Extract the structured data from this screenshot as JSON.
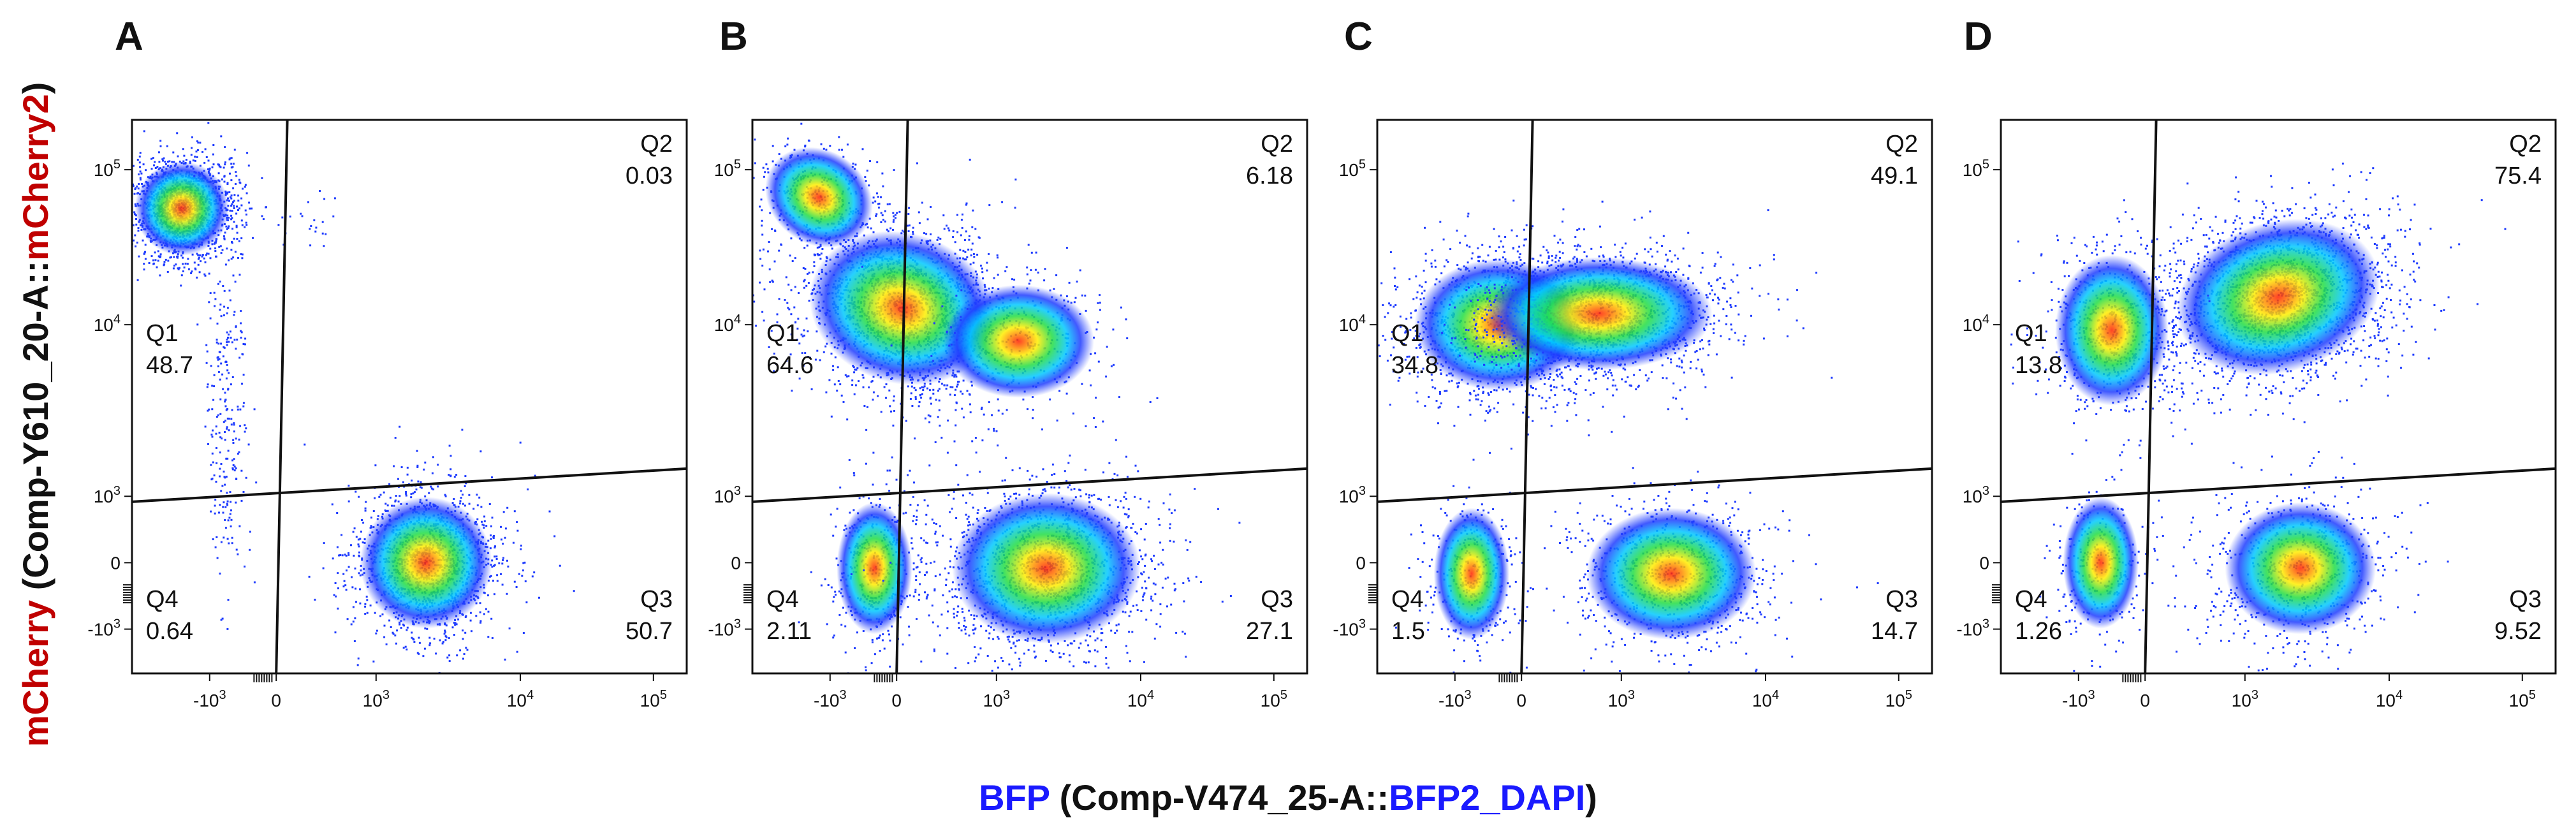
{
  "chart_data": {
    "type": "scatter",
    "subtype": "flow-cytometry-quadrant-density",
    "shared_xlabel": {
      "prefix": "BFP",
      "mid": " (Comp-V474_25-A::",
      "suffix_colored": "BFP2_DAPI",
      "close": ")"
    },
    "shared_ylabel": {
      "prefix": "mCherry",
      "mid": " (Comp-Y610_20-A::",
      "suffix_colored": "mCherry2",
      "close": ")"
    },
    "colors": {
      "bfp_label": "#1a1aff",
      "mcherry_label": "#c00000",
      "frame": "#111111"
    },
    "x_ticks": [
      "-10^3",
      "0",
      "10^3",
      "10^4",
      "10^5"
    ],
    "y_ticks": [
      "10^5",
      "10^4",
      "10^3",
      "0",
      "-10^3"
    ],
    "axis_scale": "biexponential",
    "panels": [
      {
        "label": "A",
        "quadrants": [
          {
            "name": "Q1",
            "percent": "48.7"
          },
          {
            "name": "Q2",
            "percent": "0.03"
          },
          {
            "name": "Q3",
            "percent": "50.7"
          },
          {
            "name": "Q4",
            "percent": "0.64"
          }
        ],
        "populations": [
          {
            "cx": 0.09,
            "cy": 0.16,
            "sx": 0.05,
            "sy": 0.05,
            "n": 1400,
            "rot": 0.7
          },
          {
            "cx": 0.17,
            "cy": 0.5,
            "sx": 0.02,
            "sy": 0.17,
            "n": 260,
            "rot": 0
          },
          {
            "cx": 0.53,
            "cy": 0.8,
            "sx": 0.07,
            "sy": 0.07,
            "n": 1500,
            "rot": 0
          },
          {
            "cx": 0.33,
            "cy": 0.18,
            "sx": 0.03,
            "sy": 0.03,
            "n": 18,
            "rot": 0
          }
        ]
      },
      {
        "label": "B",
        "quadrants": [
          {
            "name": "Q1",
            "percent": "64.6"
          },
          {
            "name": "Q2",
            "percent": "6.18"
          },
          {
            "name": "Q3",
            "percent": "27.1"
          },
          {
            "name": "Q4",
            "percent": "2.11"
          }
        ],
        "populations": [
          {
            "cx": 0.27,
            "cy": 0.34,
            "sx": 0.1,
            "sy": 0.08,
            "n": 2000,
            "rot": 0.3
          },
          {
            "cx": 0.12,
            "cy": 0.14,
            "sx": 0.06,
            "sy": 0.05,
            "n": 400,
            "rot": 0.6
          },
          {
            "cx": 0.48,
            "cy": 0.4,
            "sx": 0.08,
            "sy": 0.06,
            "n": 350,
            "rot": 0
          },
          {
            "cx": 0.22,
            "cy": 0.81,
            "sx": 0.04,
            "sy": 0.07,
            "n": 450,
            "rot": 0
          },
          {
            "cx": 0.53,
            "cy": 0.81,
            "sx": 0.1,
            "sy": 0.08,
            "n": 1700,
            "rot": 0
          }
        ]
      },
      {
        "label": "C",
        "quadrants": [
          {
            "name": "Q1",
            "percent": "34.8"
          },
          {
            "name": "Q2",
            "percent": "49.1"
          },
          {
            "name": "Q3",
            "percent": "14.7"
          },
          {
            "name": "Q4",
            "percent": "1.5"
          }
        ],
        "populations": [
          {
            "cx": 0.22,
            "cy": 0.37,
            "sx": 0.09,
            "sy": 0.07,
            "n": 1300,
            "rot": 0
          },
          {
            "cx": 0.4,
            "cy": 0.35,
            "sx": 0.12,
            "sy": 0.06,
            "n": 1600,
            "rot": 0
          },
          {
            "cx": 0.17,
            "cy": 0.82,
            "sx": 0.04,
            "sy": 0.07,
            "n": 380,
            "rot": 0
          },
          {
            "cx": 0.53,
            "cy": 0.82,
            "sx": 0.09,
            "sy": 0.07,
            "n": 950,
            "rot": 0
          }
        ]
      },
      {
        "label": "D",
        "quadrants": [
          {
            "name": "Q1",
            "percent": "13.8"
          },
          {
            "name": "Q2",
            "percent": "75.4"
          },
          {
            "name": "Q3",
            "percent": "9.52"
          },
          {
            "name": "Q4",
            "percent": "1.26"
          }
        ],
        "populations": [
          {
            "cx": 0.5,
            "cy": 0.32,
            "sx": 0.11,
            "sy": 0.08,
            "n": 2200,
            "rot": -0.3
          },
          {
            "cx": 0.2,
            "cy": 0.38,
            "sx": 0.06,
            "sy": 0.08,
            "n": 700,
            "rot": 0
          },
          {
            "cx": 0.18,
            "cy": 0.8,
            "sx": 0.04,
            "sy": 0.07,
            "n": 330,
            "rot": 0
          },
          {
            "cx": 0.54,
            "cy": 0.81,
            "sx": 0.08,
            "sy": 0.07,
            "n": 780,
            "rot": 0
          }
        ]
      }
    ]
  }
}
